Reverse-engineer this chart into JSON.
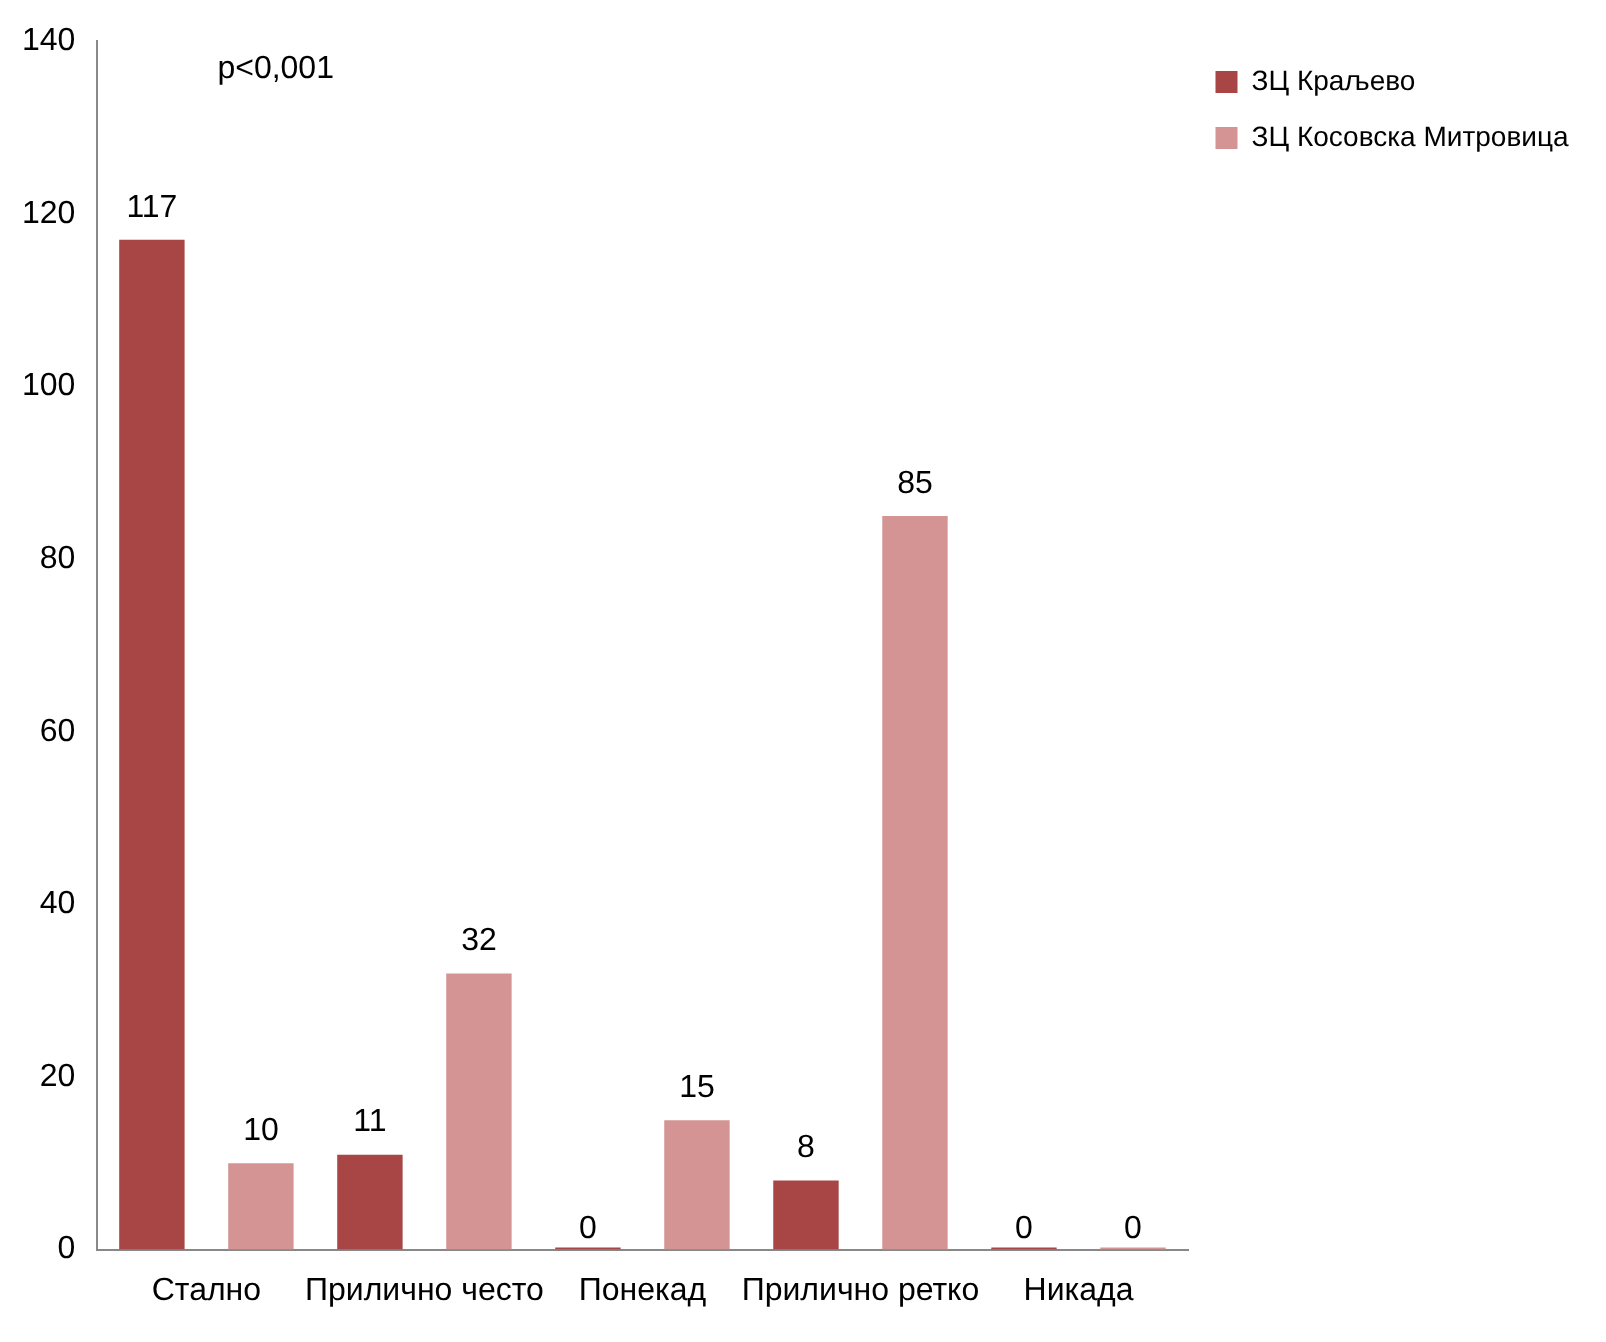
{
  "chart_data": {
    "type": "bar",
    "categories": [
      "Стално",
      "Прилично често",
      "Понекад",
      "Прилично ретко",
      "Никада"
    ],
    "series": [
      {
        "name": "ЗЦ Краљево",
        "color": "#a84545",
        "values": [
          117,
          11,
          0,
          8,
          0
        ]
      },
      {
        "name": "ЗЦ Косовска Митровица",
        "color": "#d49494",
        "values": [
          10,
          32,
          15,
          85,
          0
        ]
      }
    ],
    "ylim": [
      0,
      140
    ],
    "yticks": [
      0,
      20,
      40,
      60,
      80,
      100,
      120,
      140
    ],
    "grid": false,
    "legend": "top right",
    "data_labels": true,
    "annotations": [
      "p<0,001"
    ]
  }
}
